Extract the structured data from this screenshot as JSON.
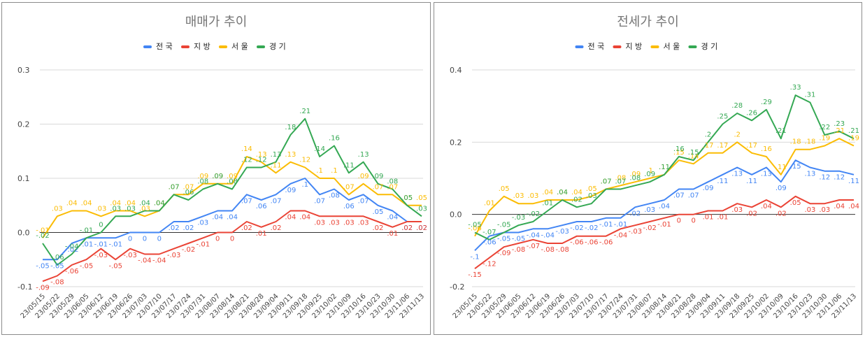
{
  "colors": {
    "전국": "#4285f4",
    "지방": "#ea4335",
    "서울": "#fbbc04",
    "경기": "#34a853"
  },
  "chart_data": [
    {
      "type": "line",
      "title": "매매가 추이",
      "xlabel": "",
      "ylabel": "",
      "ylim": [
        -0.1,
        0.3
      ],
      "yticks": [
        "-0.1",
        "0.0",
        "0.1",
        "0.2",
        "0.3"
      ],
      "legend_position": "top-center",
      "categories": [
        "23/05/15",
        "23/05/22",
        "23/05/29",
        "23/06/05",
        "23/06/12",
        "23/06/19",
        "23/06/26",
        "23/07/03",
        "23/07/10",
        "23/07/17",
        "23/07/24",
        "23/07/31",
        "23/08/07",
        "23/08/14",
        "23/08/21",
        "23/08/28",
        "23/09/04",
        "23/09/11",
        "23/09/18",
        "23/09/25",
        "23/10/02",
        "23/10/09",
        "23/10/16",
        "23/10/23",
        "23/10/30",
        "23/11/06",
        "23/11/13"
      ],
      "series": [
        {
          "name": "전국",
          "values": [
            -0.05,
            -0.05,
            -0.02,
            -0.01,
            -0.01,
            -0.01,
            0,
            0,
            0,
            0.02,
            0.02,
            0.03,
            0.04,
            0.04,
            0.07,
            0.06,
            0.07,
            0.09,
            0.1,
            0.07,
            0.08,
            0.06,
            0.07,
            0.05,
            0.04,
            0.02,
            0.02
          ]
        },
        {
          "name": "지방",
          "values": [
            -0.09,
            -0.08,
            -0.06,
            -0.05,
            -0.03,
            -0.05,
            -0.03,
            -0.04,
            -0.04,
            -0.03,
            -0.02,
            -0.01,
            0,
            0,
            0.02,
            0.01,
            0.02,
            0.04,
            0.04,
            0.03,
            0.03,
            0.03,
            0.03,
            0.02,
            0.01,
            0.02,
            0.02
          ]
        },
        {
          "name": "서울",
          "values": [
            -0.01,
            0.03,
            0.04,
            0.04,
            0.03,
            0.04,
            0.04,
            0.03,
            0.04,
            0.07,
            0.07,
            0.09,
            0.09,
            0.09,
            0.14,
            0.13,
            0.11,
            0.13,
            0.12,
            0.1,
            0.1,
            0.07,
            0.09,
            0.07,
            0.07,
            0.05,
            0.05
          ]
        },
        {
          "name": "경기",
          "values": [
            -0.02,
            -0.06,
            -0.04,
            -0.01,
            0,
            0.03,
            0.03,
            0.04,
            0.04,
            0.07,
            0.06,
            0.08,
            0.09,
            0.08,
            0.12,
            0.12,
            0.13,
            0.18,
            0.21,
            0.14,
            0.16,
            0.11,
            0.13,
            0.09,
            0.08,
            0.05,
            0.03
          ]
        }
      ]
    },
    {
      "type": "line",
      "title": "전세가 추이",
      "xlabel": "",
      "ylabel": "",
      "ylim": [
        -0.2,
        0.4
      ],
      "yticks": [
        "-0.2",
        "0.0",
        "0.2",
        "0.4"
      ],
      "legend_position": "top-center",
      "categories": [
        "23/05/15",
        "23/05/22",
        "23/05/29",
        "23/06/05",
        "23/06/12",
        "23/06/19",
        "23/06/26",
        "23/07/03",
        "23/07/10",
        "23/07/17",
        "23/07/24",
        "23/07/31",
        "23/08/07",
        "23/08/14",
        "23/08/21",
        "23/08/28",
        "23/09/04",
        "23/09/11",
        "23/09/18",
        "23/09/25",
        "23/10/02",
        "23/10/09",
        "23/10/16",
        "23/10/23",
        "23/10/30",
        "23/11/06",
        "23/11/13"
      ],
      "series": [
        {
          "name": "전국",
          "values": [
            -0.1,
            -0.06,
            -0.05,
            -0.05,
            -0.04,
            -0.04,
            -0.03,
            -0.02,
            -0.02,
            -0.01,
            -0.01,
            0.02,
            0.03,
            0.04,
            0.07,
            0.07,
            0.09,
            0.11,
            0.13,
            0.11,
            0.13,
            0.09,
            0.15,
            0.13,
            0.12,
            0.12,
            0.11
          ]
        },
        {
          "name": "지방",
          "values": [
            -0.15,
            -0.12,
            -0.09,
            -0.08,
            -0.07,
            -0.08,
            -0.08,
            -0.06,
            -0.06,
            -0.06,
            -0.04,
            -0.03,
            -0.02,
            -0.01,
            0,
            0,
            0.01,
            0.01,
            0.03,
            0.02,
            0.04,
            0.02,
            0.05,
            0.03,
            0.03,
            0.04,
            0.04
          ]
        },
        {
          "name": "서울",
          "values": [
            -0.06,
            0.01,
            0.05,
            0.03,
            0.03,
            0.04,
            0.04,
            0.04,
            0.05,
            0.07,
            0.08,
            0.09,
            0.1,
            0.11,
            0.15,
            0.14,
            0.17,
            0.17,
            0.2,
            0.17,
            0.16,
            0.11,
            0.18,
            0.18,
            0.19,
            0.21,
            0.19
          ]
        },
        {
          "name": "경기",
          "values": [
            -0.05,
            -0.07,
            -0.05,
            -0.03,
            -0.02,
            0.01,
            0.04,
            0.02,
            0.03,
            0.07,
            0.07,
            0.08,
            0.09,
            0.11,
            0.16,
            0.15,
            0.2,
            0.25,
            0.28,
            0.26,
            0.29,
            0.21,
            0.33,
            0.31,
            0.22,
            0.23,
            0.21
          ]
        }
      ]
    }
  ]
}
